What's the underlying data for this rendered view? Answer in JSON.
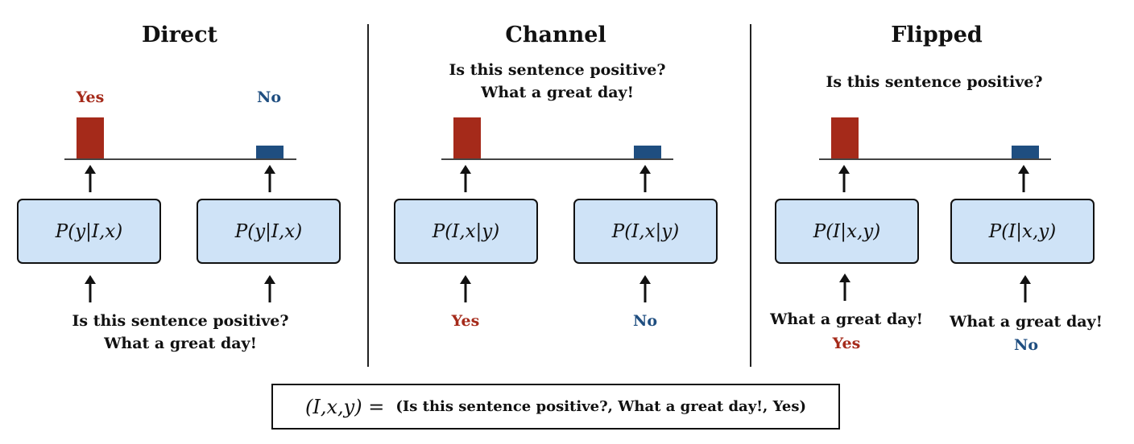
{
  "panels": [
    {
      "title": "Direct",
      "top_label_yes": "Yes",
      "top_label_no": "No",
      "box_left": "P(y|I,x)",
      "box_right": "P(y|I,x)",
      "input_line1": "Is this sentence positive?",
      "input_line2": "What a great day!"
    },
    {
      "title": "Channel",
      "top_line1": "Is this sentence positive?",
      "top_line2": "What a great day!",
      "box_left": "P(I,x|y)",
      "box_right": "P(I,x|y)",
      "input_yes": "Yes",
      "input_no": "No"
    },
    {
      "title": "Flipped",
      "top_line1": "Is this sentence positive?",
      "box_left": "P(I|x,y)",
      "box_right": "P(I|x,y)",
      "input_left_line1": "What a great day!",
      "input_left_line2": "Yes",
      "input_right_line1": "What a great day!",
      "input_right_line2": "No"
    }
  ],
  "bars": {
    "yes_relative_height": 1.0,
    "no_relative_height": 0.32
  },
  "colors": {
    "yes": "#a52a1a",
    "no": "#1f4e80",
    "box_fill": "#cfe3f7"
  },
  "legend": {
    "math": "(I,x,y) =",
    "tuple": "(Is this sentence positive?, What a great day!, Yes)"
  }
}
